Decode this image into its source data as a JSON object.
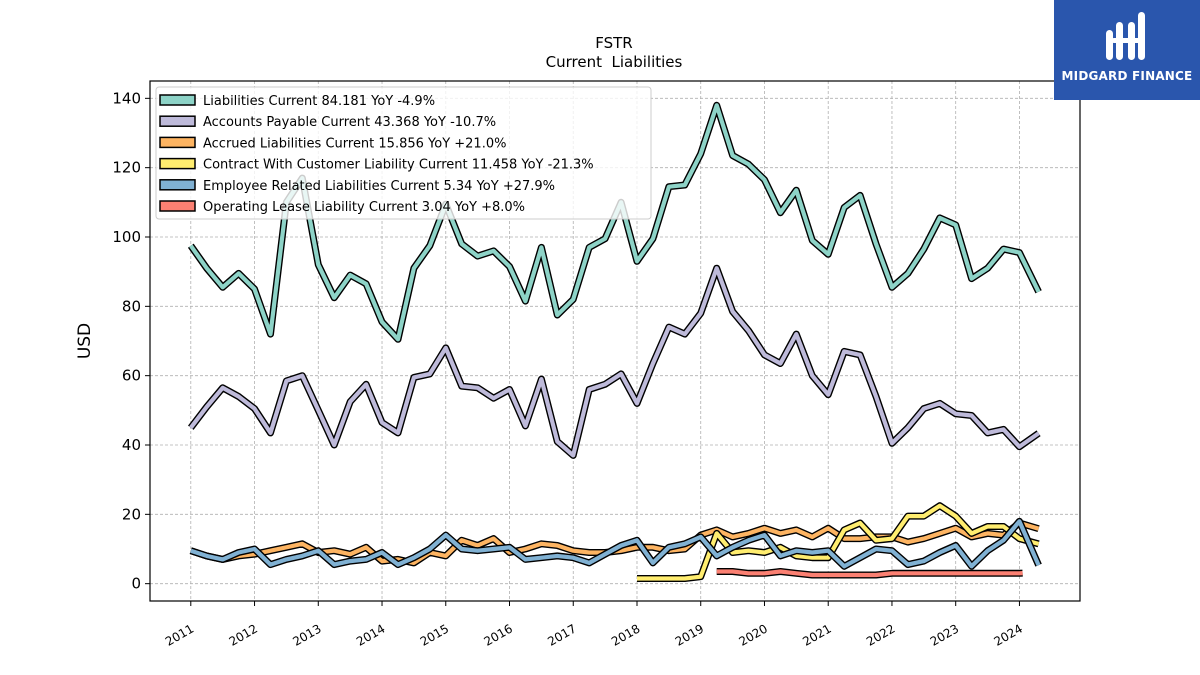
{
  "brand": {
    "name": "MIDGARD FINANCE",
    "color": "#2a56ad"
  },
  "chart_data": {
    "type": "line",
    "title": "FSTR",
    "subtitle": "Current  Liabilities",
    "ylabel": "USD",
    "xlabel": "",
    "ylim": [
      -5,
      145
    ],
    "xlim": [
      2010.36,
      2024.95
    ],
    "yticks": [
      0,
      20,
      40,
      60,
      80,
      100,
      120,
      140
    ],
    "xticks": [
      {
        "label": "2011",
        "value": 2011.0
      },
      {
        "label": "2012",
        "value": 2012.0
      },
      {
        "label": "2013",
        "value": 2013.0
      },
      {
        "label": "2014",
        "value": 2014.0
      },
      {
        "label": "2015",
        "value": 2015.0
      },
      {
        "label": "2016",
        "value": 2016.0
      },
      {
        "label": "2017",
        "value": 2017.0
      },
      {
        "label": "2018",
        "value": 2018.0
      },
      {
        "label": "2019",
        "value": 2019.0
      },
      {
        "label": "2020",
        "value": 2020.0
      },
      {
        "label": "2021",
        "value": 2021.0
      },
      {
        "label": "2022",
        "value": 2022.0
      },
      {
        "label": "2023",
        "value": 2023.0
      },
      {
        "label": "2024",
        "value": 2024.0
      }
    ],
    "grid": true,
    "legend_position": "top-left",
    "series": [
      {
        "name": "Liabilities Current  84.181 YoY -4.9%",
        "color": "#8dd3c7",
        "points": [
          [
            2011.0,
            97.5
          ],
          [
            2011.25,
            91.0
          ],
          [
            2011.5,
            85.5
          ],
          [
            2011.75,
            89.5
          ],
          [
            2012.0,
            85.0
          ],
          [
            2012.25,
            72.0
          ],
          [
            2012.5,
            110.0
          ],
          [
            2012.75,
            117.0
          ],
          [
            2013.0,
            92.0
          ],
          [
            2013.25,
            82.5
          ],
          [
            2013.5,
            89.0
          ],
          [
            2013.75,
            86.5
          ],
          [
            2014.0,
            75.5
          ],
          [
            2014.25,
            70.5
          ],
          [
            2014.5,
            91.0
          ],
          [
            2014.75,
            97.5
          ],
          [
            2015.0,
            109.5
          ],
          [
            2015.25,
            98.0
          ],
          [
            2015.5,
            94.5
          ],
          [
            2015.75,
            96.0
          ],
          [
            2016.0,
            91.5
          ],
          [
            2016.25,
            81.5
          ],
          [
            2016.5,
            97.0
          ],
          [
            2016.75,
            77.5
          ],
          [
            2017.0,
            82.0
          ],
          [
            2017.25,
            97.0
          ],
          [
            2017.5,
            99.5
          ],
          [
            2017.75,
            110.0
          ],
          [
            2018.0,
            93.0
          ],
          [
            2018.25,
            99.5
          ],
          [
            2018.5,
            114.5
          ],
          [
            2018.75,
            115.0
          ],
          [
            2019.0,
            124.0
          ],
          [
            2019.25,
            138.0
          ],
          [
            2019.5,
            123.5
          ],
          [
            2019.75,
            121.0
          ],
          [
            2020.0,
            116.5
          ],
          [
            2020.25,
            107.0
          ],
          [
            2020.5,
            113.5
          ],
          [
            2020.75,
            99.0
          ],
          [
            2021.0,
            95.0
          ],
          [
            2021.25,
            108.5
          ],
          [
            2021.5,
            112.0
          ],
          [
            2021.75,
            98.0
          ],
          [
            2022.0,
            85.5
          ],
          [
            2022.25,
            89.5
          ],
          [
            2022.5,
            96.5
          ],
          [
            2022.75,
            105.5
          ],
          [
            2023.0,
            103.5
          ],
          [
            2023.25,
            88.0
          ],
          [
            2023.5,
            91.0
          ],
          [
            2023.75,
            96.5
          ],
          [
            2024.0,
            95.5
          ],
          [
            2024.3,
            84.18
          ]
        ]
      },
      {
        "name": "Accounts Payable Current  43.368 YoY -10.7%",
        "color": "#bebada",
        "points": [
          [
            2011.0,
            45.0
          ],
          [
            2011.25,
            51.0
          ],
          [
            2011.5,
            56.5
          ],
          [
            2011.75,
            54.0
          ],
          [
            2012.0,
            50.5
          ],
          [
            2012.25,
            43.5
          ],
          [
            2012.5,
            58.5
          ],
          [
            2012.75,
            60.0
          ],
          [
            2013.0,
            50.0
          ],
          [
            2013.25,
            40.0
          ],
          [
            2013.5,
            52.5
          ],
          [
            2013.75,
            57.5
          ],
          [
            2014.0,
            46.5
          ],
          [
            2014.25,
            43.5
          ],
          [
            2014.5,
            59.5
          ],
          [
            2014.75,
            60.5
          ],
          [
            2015.0,
            68.0
          ],
          [
            2015.25,
            57.0
          ],
          [
            2015.5,
            56.5
          ],
          [
            2015.75,
            53.5
          ],
          [
            2016.0,
            56.0
          ],
          [
            2016.25,
            45.5
          ],
          [
            2016.5,
            59.0
          ],
          [
            2016.75,
            41.0
          ],
          [
            2017.0,
            37.0
          ],
          [
            2017.25,
            56.0
          ],
          [
            2017.5,
            57.5
          ],
          [
            2017.75,
            60.5
          ],
          [
            2018.0,
            52.0
          ],
          [
            2018.25,
            63.5
          ],
          [
            2018.5,
            74.0
          ],
          [
            2018.75,
            72.0
          ],
          [
            2019.0,
            78.0
          ],
          [
            2019.25,
            91.0
          ],
          [
            2019.5,
            78.5
          ],
          [
            2019.75,
            73.0
          ],
          [
            2020.0,
            66.0
          ],
          [
            2020.25,
            63.5
          ],
          [
            2020.5,
            72.0
          ],
          [
            2020.75,
            60.0
          ],
          [
            2021.0,
            54.5
          ],
          [
            2021.25,
            67.0
          ],
          [
            2021.5,
            66.0
          ],
          [
            2021.75,
            54.0
          ],
          [
            2022.0,
            40.5
          ],
          [
            2022.25,
            45.0
          ],
          [
            2022.5,
            50.5
          ],
          [
            2022.75,
            52.0
          ],
          [
            2023.0,
            49.0
          ],
          [
            2023.25,
            48.5
          ],
          [
            2023.5,
            43.5
          ],
          [
            2023.75,
            44.5
          ],
          [
            2024.0,
            39.5
          ],
          [
            2024.3,
            43.37
          ]
        ]
      },
      {
        "name": "Accrued Liabilities Current  15.856 YoY +21.0%",
        "color": "#fdb462",
        "points": [
          [
            2011.0,
            9.5
          ],
          [
            2011.25,
            8.0
          ],
          [
            2011.5,
            7.0
          ],
          [
            2011.75,
            8.0
          ],
          [
            2012.0,
            8.5
          ],
          [
            2012.25,
            9.5
          ],
          [
            2012.5,
            10.5
          ],
          [
            2012.75,
            11.5
          ],
          [
            2013.0,
            9.0
          ],
          [
            2013.25,
            9.5
          ],
          [
            2013.5,
            8.5
          ],
          [
            2013.75,
            10.5
          ],
          [
            2014.0,
            6.5
          ],
          [
            2014.25,
            7.0
          ],
          [
            2014.5,
            6.0
          ],
          [
            2014.75,
            9.0
          ],
          [
            2015.0,
            8.0
          ],
          [
            2015.25,
            12.5
          ],
          [
            2015.5,
            11.0
          ],
          [
            2015.75,
            13.0
          ],
          [
            2016.0,
            9.0
          ],
          [
            2016.25,
            10.0
          ],
          [
            2016.5,
            11.5
          ],
          [
            2016.75,
            11.0
          ],
          [
            2017.0,
            9.5
          ],
          [
            2017.25,
            9.0
          ],
          [
            2017.5,
            9.0
          ],
          [
            2017.75,
            9.5
          ],
          [
            2018.0,
            10.5
          ],
          [
            2018.25,
            10.5
          ],
          [
            2018.5,
            9.5
          ],
          [
            2018.75,
            10.0
          ],
          [
            2019.0,
            14.0
          ],
          [
            2019.25,
            15.5
          ],
          [
            2019.5,
            13.5
          ],
          [
            2019.75,
            14.5
          ],
          [
            2020.0,
            16.0
          ],
          [
            2020.25,
            14.5
          ],
          [
            2020.5,
            15.5
          ],
          [
            2020.75,
            13.5
          ],
          [
            2021.0,
            16.0
          ],
          [
            2021.25,
            13.0
          ],
          [
            2021.5,
            13.0
          ],
          [
            2021.75,
            13.5
          ],
          [
            2022.0,
            13.5
          ],
          [
            2022.25,
            12.0
          ],
          [
            2022.5,
            13.0
          ],
          [
            2022.75,
            14.5
          ],
          [
            2023.0,
            16.0
          ],
          [
            2023.25,
            13.5
          ],
          [
            2023.5,
            14.5
          ],
          [
            2023.75,
            14.0
          ],
          [
            2024.0,
            17.5
          ],
          [
            2024.3,
            15.86
          ]
        ]
      },
      {
        "name": "Contract With Customer Liability Current  11.458 YoY -21.3%",
        "color": "#ffed6f",
        "points": [
          [
            2018.0,
            1.5
          ],
          [
            2018.25,
            1.5
          ],
          [
            2018.5,
            1.5
          ],
          [
            2018.75,
            1.5
          ],
          [
            2019.0,
            2.0
          ],
          [
            2019.25,
            14.5
          ],
          [
            2019.5,
            9.0
          ],
          [
            2019.75,
            9.5
          ],
          [
            2020.0,
            9.0
          ],
          [
            2020.25,
            10.5
          ],
          [
            2020.5,
            8.0
          ],
          [
            2020.75,
            7.5
          ],
          [
            2021.0,
            7.5
          ],
          [
            2021.25,
            15.5
          ],
          [
            2021.5,
            17.5
          ],
          [
            2021.75,
            12.5
          ],
          [
            2022.0,
            13.0
          ],
          [
            2022.25,
            19.5
          ],
          [
            2022.5,
            19.5
          ],
          [
            2022.75,
            22.5
          ],
          [
            2023.0,
            19.5
          ],
          [
            2023.25,
            14.5
          ],
          [
            2023.5,
            16.5
          ],
          [
            2023.75,
            16.5
          ],
          [
            2024.0,
            13.0
          ],
          [
            2024.3,
            11.46
          ]
        ]
      },
      {
        "name": "Employee Related Liabilities Current  5.34 YoY +27.9%",
        "color": "#80b1d3",
        "points": [
          [
            2011.0,
            9.5
          ],
          [
            2011.25,
            8.0
          ],
          [
            2011.5,
            7.0
          ],
          [
            2011.75,
            9.0
          ],
          [
            2012.0,
            10.0
          ],
          [
            2012.25,
            5.5
          ],
          [
            2012.5,
            7.0
          ],
          [
            2012.75,
            8.0
          ],
          [
            2013.0,
            9.5
          ],
          [
            2013.25,
            5.5
          ],
          [
            2013.5,
            6.5
          ],
          [
            2013.75,
            7.0
          ],
          [
            2014.0,
            9.0
          ],
          [
            2014.25,
            5.5
          ],
          [
            2014.5,
            7.5
          ],
          [
            2014.75,
            10.0
          ],
          [
            2015.0,
            14.0
          ],
          [
            2015.25,
            10.0
          ],
          [
            2015.5,
            9.5
          ],
          [
            2015.75,
            10.0
          ],
          [
            2016.0,
            10.5
          ],
          [
            2016.25,
            7.0
          ],
          [
            2016.5,
            7.5
          ],
          [
            2016.75,
            8.0
          ],
          [
            2017.0,
            7.5
          ],
          [
            2017.25,
            6.0
          ],
          [
            2017.5,
            8.5
          ],
          [
            2017.75,
            11.0
          ],
          [
            2018.0,
            12.5
          ],
          [
            2018.25,
            6.0
          ],
          [
            2018.5,
            10.5
          ],
          [
            2018.75,
            11.5
          ],
          [
            2019.0,
            13.5
          ],
          [
            2019.25,
            8.0
          ],
          [
            2019.5,
            10.5
          ],
          [
            2019.75,
            12.5
          ],
          [
            2020.0,
            14.0
          ],
          [
            2020.25,
            8.0
          ],
          [
            2020.5,
            9.5
          ],
          [
            2020.75,
            9.0
          ],
          [
            2021.0,
            9.5
          ],
          [
            2021.25,
            5.0
          ],
          [
            2021.5,
            7.5
          ],
          [
            2021.75,
            10.0
          ],
          [
            2022.0,
            9.5
          ],
          [
            2022.25,
            5.5
          ],
          [
            2022.5,
            6.5
          ],
          [
            2022.75,
            9.0
          ],
          [
            2023.0,
            11.0
          ],
          [
            2023.25,
            5.0
          ],
          [
            2023.5,
            9.5
          ],
          [
            2023.75,
            12.5
          ],
          [
            2024.0,
            18.0
          ],
          [
            2024.3,
            5.34
          ]
        ]
      },
      {
        "name": "Operating Lease Liability Current  3.04 YoY +8.0%",
        "color": "#fb8072",
        "points": [
          [
            2019.25,
            3.5
          ],
          [
            2019.5,
            3.5
          ],
          [
            2019.75,
            3.0
          ],
          [
            2020.0,
            3.0
          ],
          [
            2020.25,
            3.5
          ],
          [
            2020.5,
            3.0
          ],
          [
            2020.75,
            2.5
          ],
          [
            2021.0,
            2.5
          ],
          [
            2021.25,
            2.5
          ],
          [
            2021.5,
            2.5
          ],
          [
            2021.75,
            2.5
          ],
          [
            2022.0,
            3.0
          ],
          [
            2022.25,
            3.0
          ],
          [
            2022.5,
            3.0
          ],
          [
            2022.75,
            3.0
          ],
          [
            2023.0,
            3.0
          ],
          [
            2023.25,
            3.0
          ],
          [
            2023.5,
            3.0
          ],
          [
            2023.75,
            3.0
          ],
          [
            2024.0,
            3.0
          ],
          [
            2024.05,
            3.04
          ]
        ]
      }
    ]
  }
}
